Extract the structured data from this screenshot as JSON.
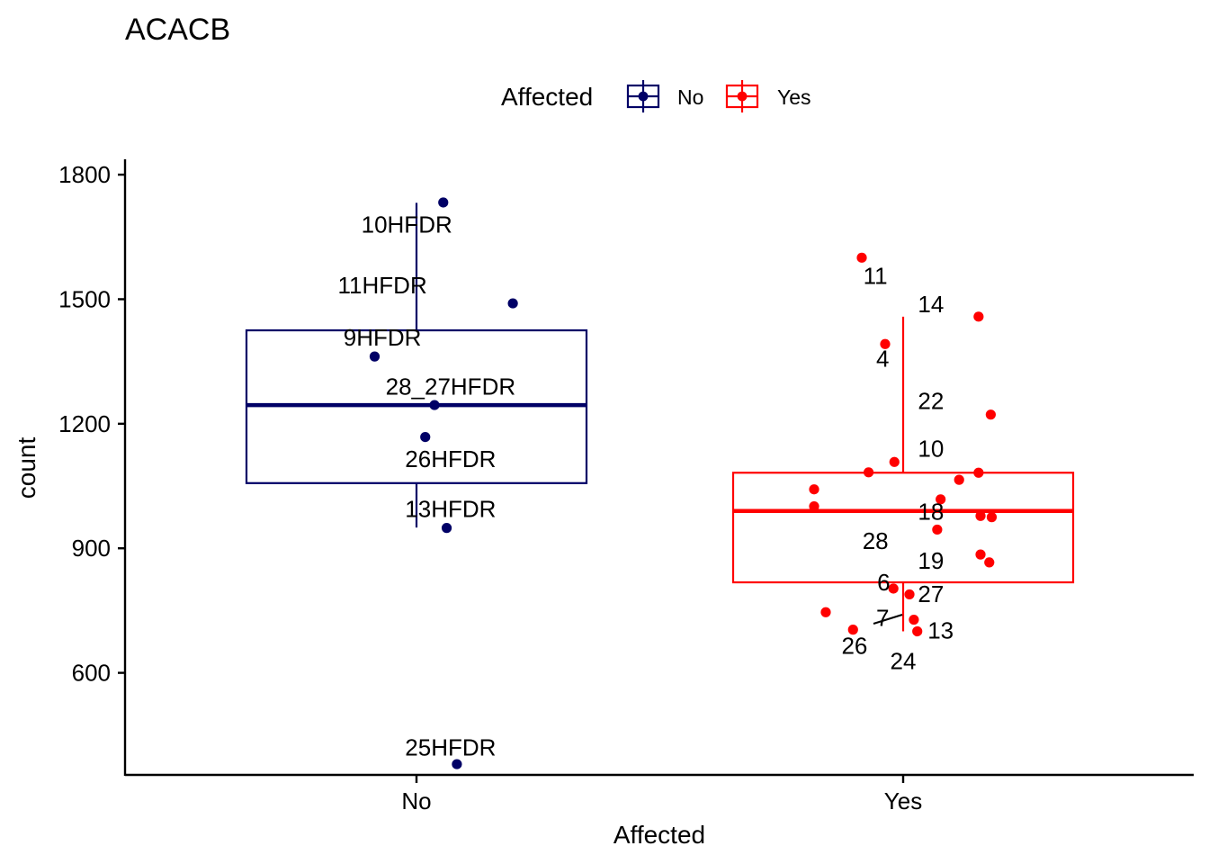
{
  "chart_data": {
    "type": "box",
    "title": "ACACB",
    "xlabel": "Affected",
    "ylabel": "count",
    "categories": [
      "No",
      "Yes"
    ],
    "ylim": [
      352,
      1837
    ],
    "yticks": [
      600,
      900,
      1200,
      1500,
      1800
    ],
    "grid": false,
    "legend": {
      "title": "Affected",
      "placement": "top",
      "entries": [
        "No",
        "Yes"
      ]
    },
    "colors": {
      "No": "#000066",
      "Yes": "#ff0000"
    },
    "series": [
      {
        "name": "No",
        "box": {
          "whisker_low": 950,
          "q1": 1057,
          "median": 1245,
          "q3": 1425,
          "whisker_high": 1732
        },
        "points": [
          {
            "x": "No",
            "y": 1733,
            "jitter": 0.055
          },
          {
            "x": "No",
            "y": 1490,
            "jitter": 0.198
          },
          {
            "x": "No",
            "y": 1362,
            "jitter": -0.086
          },
          {
            "x": "No",
            "y": 1245,
            "jitter": 0.037
          },
          {
            "x": "No",
            "y": 1168,
            "jitter": 0.018
          },
          {
            "x": "No",
            "y": 949,
            "jitter": 0.062
          },
          {
            "x": "No",
            "y": 380,
            "jitter": 0.083
          }
        ],
        "labels": [
          {
            "text": "10HFDR",
            "x": "No",
            "y": 1680,
            "offset": -0.02
          },
          {
            "text": "11HFDR",
            "x": "No",
            "y": 1533,
            "offset": -0.07
          },
          {
            "text": "9HFDR",
            "x": "No",
            "y": 1408,
            "offset": -0.07
          },
          {
            "text": "28_27HFDR",
            "x": "No",
            "y": 1290,
            "offset": 0.07
          },
          {
            "text": "26HFDR",
            "x": "No",
            "y": 1115,
            "offset": 0.07
          },
          {
            "text": "13HFDR",
            "x": "No",
            "y": 995,
            "offset": 0.07
          },
          {
            "text": "25HFDR",
            "x": "No",
            "y": 420,
            "offset": 0.07
          }
        ]
      },
      {
        "name": "Yes",
        "box": {
          "whisker_low": 700,
          "q1": 818,
          "median": 990,
          "q3": 1082,
          "whisker_high": 1458
        },
        "points": [
          {
            "x": "Yes",
            "y": 1600,
            "jitter": -0.085
          },
          {
            "x": "Yes",
            "y": 1458,
            "jitter": 0.155
          },
          {
            "x": "Yes",
            "y": 1392,
            "jitter": -0.037
          },
          {
            "x": "Yes",
            "y": 1222,
            "jitter": 0.18
          },
          {
            "x": "Yes",
            "y": 1108,
            "jitter": -0.018
          },
          {
            "x": "Yes",
            "y": 1083,
            "jitter": -0.071
          },
          {
            "x": "Yes",
            "y": 1082,
            "jitter": 0.155
          },
          {
            "x": "Yes",
            "y": 1065,
            "jitter": 0.115
          },
          {
            "x": "Yes",
            "y": 1042,
            "jitter": -0.183
          },
          {
            "x": "Yes",
            "y": 1018,
            "jitter": 0.077
          },
          {
            "x": "Yes",
            "y": 1001,
            "jitter": -0.183
          },
          {
            "x": "Yes",
            "y": 978,
            "jitter": 0.159
          },
          {
            "x": "Yes",
            "y": 975,
            "jitter": 0.182
          },
          {
            "x": "Yes",
            "y": 945,
            "jitter": 0.07
          },
          {
            "x": "Yes",
            "y": 885,
            "jitter": 0.159
          },
          {
            "x": "Yes",
            "y": 866,
            "jitter": 0.177
          },
          {
            "x": "Yes",
            "y": 803,
            "jitter": -0.02
          },
          {
            "x": "Yes",
            "y": 789,
            "jitter": 0.013
          },
          {
            "x": "Yes",
            "y": 746,
            "jitter": -0.159
          },
          {
            "x": "Yes",
            "y": 728,
            "jitter": 0.022
          },
          {
            "x": "Yes",
            "y": 704,
            "jitter": -0.103
          },
          {
            "x": "Yes",
            "y": 700,
            "jitter": 0.029
          }
        ],
        "labels": [
          {
            "text": "11",
            "x": "Yes",
            "y": 1556,
            "offset": -0.057
          },
          {
            "text": "14",
            "x": "Yes",
            "y": 1488,
            "offset": 0.057
          },
          {
            "text": "4",
            "x": "Yes",
            "y": 1357,
            "offset": -0.042
          },
          {
            "text": "22",
            "x": "Yes",
            "y": 1255,
            "offset": 0.057
          },
          {
            "text": "10",
            "x": "Yes",
            "y": 1140,
            "offset": 0.057
          },
          {
            "text": "18",
            "x": "Yes",
            "y": 988,
            "offset": 0.057
          },
          {
            "text": "28",
            "x": "Yes",
            "y": 918,
            "offset": -0.057
          },
          {
            "text": "19",
            "x": "Yes",
            "y": 870,
            "offset": 0.057
          },
          {
            "text": "6",
            "x": "Yes",
            "y": 818,
            "offset": -0.04
          },
          {
            "text": "27",
            "x": "Yes",
            "y": 790,
            "offset": 0.057
          },
          {
            "text": "7",
            "x": "Yes",
            "y": 732,
            "offset": -0.042
          },
          {
            "text": "13",
            "x": "Yes",
            "y": 702,
            "offset": 0.077
          },
          {
            "text": "26",
            "x": "Yes",
            "y": 665,
            "offset": -0.1
          },
          {
            "text": "24",
            "x": "Yes",
            "y": 628,
            "offset": 0.0
          }
        ]
      }
    ]
  }
}
